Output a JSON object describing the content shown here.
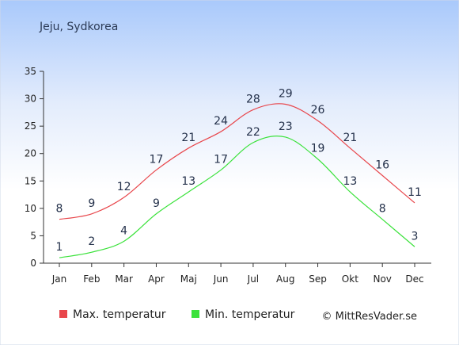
{
  "chart_data": {
    "type": "line",
    "title": "Jeju, Sydkorea",
    "xlabel": "",
    "ylabel": "",
    "categories": [
      "Jan",
      "Feb",
      "Mar",
      "Apr",
      "Maj",
      "Jun",
      "Jul",
      "Aug",
      "Sep",
      "Okt",
      "Nov",
      "Dec"
    ],
    "ylim": [
      0,
      35
    ],
    "yticks": [
      0,
      5,
      10,
      15,
      20,
      25,
      30,
      35
    ],
    "grid": false,
    "legend_position": "bottom-left",
    "series": [
      {
        "name": "Max. temperatur",
        "color": "#e8464b",
        "values": [
          8,
          9,
          12,
          17,
          21,
          24,
          28,
          29,
          26,
          21,
          16,
          11
        ]
      },
      {
        "name": "Min. temperatur",
        "color": "#3be23b",
        "values": [
          1,
          2,
          4,
          9,
          13,
          17,
          22,
          23,
          19,
          13,
          8,
          3
        ]
      }
    ],
    "credit": "© MittResVader.se"
  }
}
